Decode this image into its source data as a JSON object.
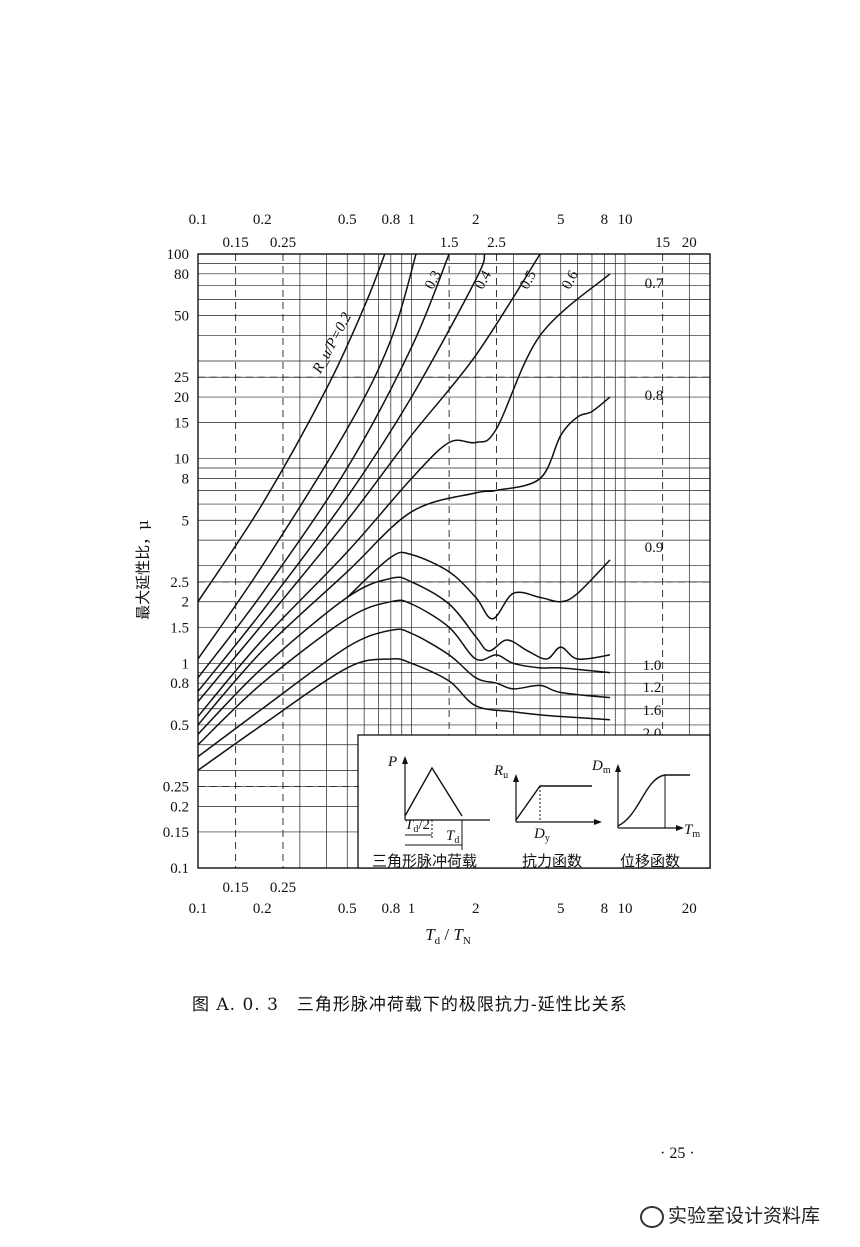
{
  "chart_data": {
    "type": "line",
    "title": "",
    "xlabel": "T_d / T_N",
    "ylabel": "最大延性比，μ",
    "xscale": "log",
    "yscale": "log",
    "xlim": [
      0.1,
      25
    ],
    "ylim": [
      0.1,
      100
    ],
    "grid": true,
    "x_ticks_bottom": [
      "0.1",
      "0.15",
      "0.2",
      "0.25",
      "0.5",
      "0.8",
      "1",
      "2",
      "5",
      "8",
      "10",
      "20"
    ],
    "x_ticks_top_row1": [
      "0.1",
      "0.2",
      "0.5",
      "0.8",
      "1",
      "2",
      "5",
      "8",
      "10"
    ],
    "x_ticks_top_row2": [
      "0.15",
      "0.25",
      "1.5",
      "2.5",
      "15",
      "20"
    ],
    "y_ticks": [
      "100",
      "80",
      "50",
      "25",
      "20",
      "15",
      "10",
      "8",
      "5",
      "2.5",
      "2",
      "1.5",
      "1",
      "0.8",
      "0.5",
      "0.25",
      "0.2",
      "0.15",
      "0.1"
    ],
    "series": [
      {
        "name": "R_u/P=0.2",
        "points": [
          [
            0.1,
            2
          ],
          [
            0.2,
            6
          ],
          [
            0.4,
            22
          ],
          [
            0.6,
            55
          ],
          [
            0.75,
            100
          ]
        ]
      },
      {
        "name": "0.3",
        "points": [
          [
            0.1,
            1.05
          ],
          [
            0.2,
            3
          ],
          [
            0.5,
            14
          ],
          [
            0.8,
            38
          ],
          [
            1.05,
            100
          ]
        ]
      },
      {
        "name": "0.4",
        "points": [
          [
            0.1,
            0.85
          ],
          [
            0.2,
            2.2
          ],
          [
            0.5,
            9
          ],
          [
            1,
            35
          ],
          [
            1.5,
            100
          ]
        ]
      },
      {
        "name": "0.5",
        "points": [
          [
            0.1,
            0.73
          ],
          [
            0.2,
            1.8
          ],
          [
            0.5,
            6.5
          ],
          [
            1,
            20
          ],
          [
            2,
            75
          ],
          [
            2.2,
            100
          ]
        ]
      },
      {
        "name": "0.6",
        "points": [
          [
            0.1,
            0.65
          ],
          [
            0.2,
            1.55
          ],
          [
            0.5,
            5
          ],
          [
            1,
            13
          ],
          [
            2,
            32
          ],
          [
            4,
            100
          ]
        ]
      },
      {
        "name": "0.7",
        "points": [
          [
            0.1,
            0.55
          ],
          [
            0.2,
            1.3
          ],
          [
            0.5,
            3.5
          ],
          [
            1,
            8
          ],
          [
            1.5,
            12
          ],
          [
            2,
            12
          ],
          [
            2.5,
            14
          ],
          [
            4,
            40
          ],
          [
            8.5,
            80
          ]
        ]
      },
      {
        "name": "0.8",
        "points": [
          [
            0.1,
            0.5
          ],
          [
            0.2,
            1.15
          ],
          [
            0.5,
            2.8
          ],
          [
            1,
            5.5
          ],
          [
            2,
            6.8
          ],
          [
            2.5,
            7
          ],
          [
            4,
            8
          ],
          [
            5,
            13
          ],
          [
            6,
            16
          ],
          [
            7,
            17
          ],
          [
            8.5,
            20
          ]
        ]
      },
      {
        "name": "0.9",
        "points": [
          [
            0.5,
            2.1
          ],
          [
            0.8,
            3.3
          ],
          [
            1,
            3.4
          ],
          [
            1.5,
            2.8
          ],
          [
            2,
            2.1
          ],
          [
            2.4,
            1.65
          ],
          [
            3,
            2.2
          ],
          [
            4,
            2.1
          ],
          [
            5,
            2
          ],
          [
            6,
            2.2
          ],
          [
            8.5,
            3.2
          ]
        ]
      },
      {
        "name": "1.0",
        "points": [
          [
            0.1,
            0.45
          ],
          [
            0.2,
            0.95
          ],
          [
            0.5,
            2.1
          ],
          [
            0.8,
            2.6
          ],
          [
            1,
            2.5
          ],
          [
            1.5,
            1.95
          ],
          [
            2,
            1.35
          ],
          [
            2.3,
            1.15
          ],
          [
            2.8,
            1.3
          ],
          [
            3.5,
            1.15
          ],
          [
            4.3,
            1.05
          ],
          [
            5,
            1.2
          ],
          [
            6,
            1.05
          ],
          [
            8.5,
            1.1
          ]
        ]
      },
      {
        "name": "1.2",
        "points": [
          [
            0.1,
            0.4
          ],
          [
            0.2,
            0.8
          ],
          [
            0.5,
            1.65
          ],
          [
            0.8,
            2
          ],
          [
            1,
            1.95
          ],
          [
            1.5,
            1.5
          ],
          [
            2,
            1.05
          ],
          [
            2.5,
            1.1
          ],
          [
            3,
            1
          ],
          [
            4,
            0.95
          ],
          [
            5,
            0.95
          ],
          [
            8.5,
            0.9
          ]
        ]
      },
      {
        "name": "1.6",
        "points": [
          [
            0.1,
            0.35
          ],
          [
            0.2,
            0.6
          ],
          [
            0.5,
            1.2
          ],
          [
            0.8,
            1.45
          ],
          [
            1,
            1.4
          ],
          [
            1.5,
            1.1
          ],
          [
            2,
            0.85
          ],
          [
            2.5,
            0.8
          ],
          [
            3,
            0.75
          ],
          [
            4,
            0.78
          ],
          [
            5,
            0.72
          ],
          [
            8.5,
            0.68
          ]
        ]
      },
      {
        "name": "2.0",
        "points": [
          [
            0.1,
            0.3
          ],
          [
            0.2,
            0.5
          ],
          [
            0.5,
            0.95
          ],
          [
            0.8,
            1.05
          ],
          [
            1,
            1
          ],
          [
            1.5,
            0.82
          ],
          [
            2,
            0.62
          ],
          [
            3,
            0.58
          ],
          [
            4,
            0.56
          ],
          [
            5,
            0.55
          ],
          [
            8.5,
            0.53
          ]
        ]
      }
    ],
    "inset": {
      "panels": [
        {
          "caption": "三角形脉冲荷载",
          "y_label": "P",
          "x_labels": [
            "T_d/2",
            "T_d"
          ]
        },
        {
          "caption": "抗力函数",
          "y_label": "R_u",
          "x_labels": [
            "D_y"
          ]
        },
        {
          "caption": "位移函数",
          "y_label": "D_m",
          "x_labels": [
            "T_m"
          ]
        }
      ]
    }
  },
  "caption": "图 A. 0. 3　三角形脉冲荷载下的极限抗力-延性比关系",
  "page_number": "· 25 ·",
  "watermark": "实验室设计资料库"
}
